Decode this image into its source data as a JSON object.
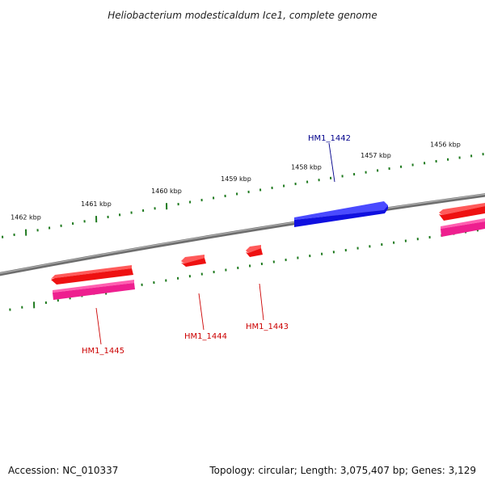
{
  "title": "Heliobacterium modesticaldum Ice1, complete genome",
  "footer": {
    "accession": "Accession: NC_010337",
    "stats": "Topology: circular; Length: 3,075,407 bp; Genes: 3,129"
  },
  "colors": {
    "backbone": "#808080",
    "tick": "#1f7a1f",
    "forward_cds": "#1010e0",
    "reverse_cds": "#ee1111",
    "reverse_gene": "#ee1f8f",
    "forward_label": "#00008b",
    "reverse_label": "#cc0000"
  },
  "ticks": {
    "outer_labels": [
      "1462 kbp",
      "1461 kbp",
      "1460 kbp",
      "1459 kbp",
      "1458 kbp",
      "1457 kbp",
      "1456 kbp"
    ],
    "inner_labels": []
  },
  "genes": [
    {
      "id": "HM1_1442",
      "strand": "forward",
      "label": "HM1_1442"
    },
    {
      "id": "HM1_1443",
      "strand": "reverse",
      "label": "HM1_1443"
    },
    {
      "id": "HM1_1444",
      "strand": "reverse",
      "label": "HM1_1444"
    },
    {
      "id": "HM1_1445",
      "strand": "reverse",
      "label": "HM1_1445"
    }
  ]
}
